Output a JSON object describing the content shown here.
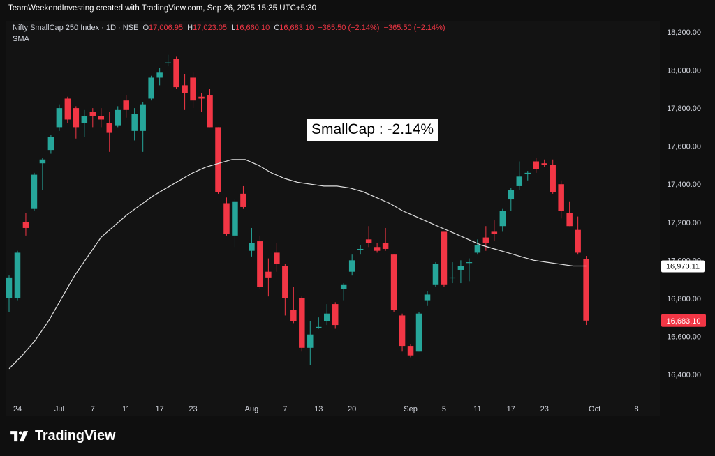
{
  "header": {
    "title": "TeamWeekendInvesting created with TradingView.com, Sep 26, 2025 15:35 UTC+5:30"
  },
  "legend": {
    "symbol": "Nifty SmallCap 250 Index · 1D · NSE",
    "open_label": "O",
    "open": "17,006.95",
    "high_label": "H",
    "high": "17,023.05",
    "low_label": "L",
    "low": "16,660.10",
    "close_label": "C",
    "close": "16,683.10",
    "change": "−365.50 (−2.14%)",
    "change2": "−365.50 (−2.14%)",
    "indicator": "SMA"
  },
  "annotation": {
    "text": "SmallCap : -2.14%"
  },
  "brand": {
    "name": "TradingView",
    "logo_icon": "tradingview-logo-icon"
  },
  "colors": {
    "up": "#26a69a",
    "down": "#f23645",
    "sma": "#e0e0e0",
    "sma_badge_bg": "#ffffff",
    "price_badge_bg": "#f23645"
  },
  "chart_data": {
    "type": "candlestick",
    "title": "Nifty SmallCap 250 Index · 1D · NSE",
    "ylim": [
      16300,
      18270
    ],
    "y_ticks": [
      16400,
      16600,
      16800,
      17000,
      17200,
      17400,
      17600,
      17800,
      18000,
      18200
    ],
    "y_tick_labels": [
      "16,400.00",
      "16,600.00",
      "16,800.00",
      "17,000.00",
      "17,200.00",
      "17,400.00",
      "17,600.00",
      "17,800.00",
      "18,000.00",
      "18,200.00"
    ],
    "x_ticks": [
      {
        "label": "24",
        "date": "2025-06-24"
      },
      {
        "label": "Jul",
        "date": "2025-07-01"
      },
      {
        "label": "7",
        "date": "2025-07-07"
      },
      {
        "label": "11",
        "date": "2025-07-11"
      },
      {
        "label": "17",
        "date": "2025-07-17"
      },
      {
        "label": "23",
        "date": "2025-07-23"
      },
      {
        "label": "Aug",
        "date": "2025-08-01"
      },
      {
        "label": "7",
        "date": "2025-08-07"
      },
      {
        "label": "13",
        "date": "2025-08-13"
      },
      {
        "label": "20",
        "date": "2025-08-20"
      },
      {
        "label": "Sep",
        "date": "2025-09-01"
      },
      {
        "label": "5",
        "date": "2025-09-05"
      },
      {
        "label": "11",
        "date": "2025-09-11"
      },
      {
        "label": "17",
        "date": "2025-09-17"
      },
      {
        "label": "23",
        "date": "2025-09-23"
      },
      {
        "label": "Oct",
        "date": "2025-10-01"
      },
      {
        "label": "8",
        "date": "2025-10-08"
      }
    ],
    "candles": [
      {
        "o": 16800,
        "h": 16920,
        "l": 16730,
        "c": 16910
      },
      {
        "o": 16800,
        "h": 17050,
        "l": 16790,
        "c": 17040
      },
      {
        "o": 17200,
        "h": 17250,
        "l": 17130,
        "c": 17170
      },
      {
        "o": 17270,
        "h": 17460,
        "l": 17260,
        "c": 17450
      },
      {
        "o": 17510,
        "h": 17540,
        "l": 17370,
        "c": 17530
      },
      {
        "o": 17580,
        "h": 17660,
        "l": 17560,
        "c": 17650
      },
      {
        "o": 17700,
        "h": 17820,
        "l": 17680,
        "c": 17800
      },
      {
        "o": 17850,
        "h": 17860,
        "l": 17720,
        "c": 17740
      },
      {
        "o": 17800,
        "h": 17810,
        "l": 17640,
        "c": 17700
      },
      {
        "o": 17720,
        "h": 17790,
        "l": 17650,
        "c": 17760
      },
      {
        "o": 17780,
        "h": 17800,
        "l": 17700,
        "c": 17760
      },
      {
        "o": 17760,
        "h": 17800,
        "l": 17700,
        "c": 17740
      },
      {
        "o": 17720,
        "h": 17780,
        "l": 17570,
        "c": 17670
      },
      {
        "o": 17710,
        "h": 17810,
        "l": 17700,
        "c": 17790
      },
      {
        "o": 17840,
        "h": 17870,
        "l": 17750,
        "c": 17790
      },
      {
        "o": 17680,
        "h": 17800,
        "l": 17630,
        "c": 17770
      },
      {
        "o": 17680,
        "h": 17830,
        "l": 17570,
        "c": 17820
      },
      {
        "o": 17850,
        "h": 17970,
        "l": 17840,
        "c": 17960
      },
      {
        "o": 17960,
        "h": 18010,
        "l": 17920,
        "c": 17990
      },
      {
        "o": 18040,
        "h": 18080,
        "l": 18020,
        "c": 18040
      },
      {
        "o": 18060,
        "h": 18070,
        "l": 17900,
        "c": 17910
      },
      {
        "o": 17920,
        "h": 17980,
        "l": 17790,
        "c": 17880
      },
      {
        "o": 17960,
        "h": 17990,
        "l": 17800,
        "c": 17840
      },
      {
        "o": 17860,
        "h": 17880,
        "l": 17780,
        "c": 17850
      },
      {
        "o": 17870,
        "h": 17900,
        "l": 17700,
        "c": 17700
      },
      {
        "o": 17700,
        "h": 17700,
        "l": 17350,
        "c": 17360
      },
      {
        "o": 17300,
        "h": 17330,
        "l": 17130,
        "c": 17140
      },
      {
        "o": 17130,
        "h": 17320,
        "l": 17070,
        "c": 17310
      },
      {
        "o": 17350,
        "h": 17390,
        "l": 17270,
        "c": 17280
      },
      {
        "o": 17050,
        "h": 17170,
        "l": 17020,
        "c": 17090
      },
      {
        "o": 17100,
        "h": 17130,
        "l": 16850,
        "c": 16860
      },
      {
        "o": 16940,
        "h": 17010,
        "l": 16810,
        "c": 16910
      },
      {
        "o": 17040,
        "h": 17090,
        "l": 16940,
        "c": 16980
      },
      {
        "o": 16970,
        "h": 16980,
        "l": 16710,
        "c": 16800
      },
      {
        "o": 16740,
        "h": 16860,
        "l": 16670,
        "c": 16680
      },
      {
        "o": 16800,
        "h": 16810,
        "l": 16520,
        "c": 16540
      },
      {
        "o": 16540,
        "h": 16680,
        "l": 16450,
        "c": 16610
      },
      {
        "o": 16650,
        "h": 16700,
        "l": 16640,
        "c": 16650
      },
      {
        "o": 16680,
        "h": 16770,
        "l": 16660,
        "c": 16720
      },
      {
        "o": 16770,
        "h": 16780,
        "l": 16640,
        "c": 16660
      },
      {
        "o": 16850,
        "h": 16880,
        "l": 16790,
        "c": 16870
      },
      {
        "o": 16940,
        "h": 17030,
        "l": 16920,
        "c": 17000
      },
      {
        "o": 17060,
        "h": 17080,
        "l": 17030,
        "c": 17060
      },
      {
        "o": 17110,
        "h": 17180,
        "l": 17070,
        "c": 17090
      },
      {
        "o": 17070,
        "h": 17090,
        "l": 17040,
        "c": 17050
      },
      {
        "o": 17090,
        "h": 17170,
        "l": 17050,
        "c": 17060
      },
      {
        "o": 17030,
        "h": 17030,
        "l": 16730,
        "c": 16740
      },
      {
        "o": 16710,
        "h": 16720,
        "l": 16520,
        "c": 16550
      },
      {
        "o": 16550,
        "h": 16560,
        "l": 16490,
        "c": 16500
      },
      {
        "o": 16520,
        "h": 16730,
        "l": 16520,
        "c": 16720
      },
      {
        "o": 16790,
        "h": 16840,
        "l": 16760,
        "c": 16820
      },
      {
        "o": 16870,
        "h": 16990,
        "l": 16860,
        "c": 16980
      },
      {
        "o": 17150,
        "h": 17150,
        "l": 16860,
        "c": 16870
      },
      {
        "o": 16910,
        "h": 16990,
        "l": 16880,
        "c": 16910
      },
      {
        "o": 16950,
        "h": 17000,
        "l": 16880,
        "c": 16970
      },
      {
        "o": 16990,
        "h": 17010,
        "l": 16890,
        "c": 16990
      },
      {
        "o": 17040,
        "h": 17110,
        "l": 17030,
        "c": 17080
      },
      {
        "o": 17120,
        "h": 17180,
        "l": 17050,
        "c": 17090
      },
      {
        "o": 17150,
        "h": 17210,
        "l": 17100,
        "c": 17140
      },
      {
        "o": 17180,
        "h": 17270,
        "l": 17150,
        "c": 17260
      },
      {
        "o": 17320,
        "h": 17380,
        "l": 17260,
        "c": 17370
      },
      {
        "o": 17390,
        "h": 17520,
        "l": 17370,
        "c": 17440
      },
      {
        "o": 17460,
        "h": 17470,
        "l": 17420,
        "c": 17460
      },
      {
        "o": 17520,
        "h": 17540,
        "l": 17460,
        "c": 17480
      },
      {
        "o": 17510,
        "h": 17530,
        "l": 17490,
        "c": 17500
      },
      {
        "o": 17500,
        "h": 17530,
        "l": 17350,
        "c": 17360
      },
      {
        "o": 17400,
        "h": 17420,
        "l": 17220,
        "c": 17260
      },
      {
        "o": 17250,
        "h": 17310,
        "l": 17180,
        "c": 17180
      },
      {
        "o": 17160,
        "h": 17230,
        "l": 17030,
        "c": 17040
      },
      {
        "o": 17006.95,
        "h": 17023.05,
        "l": 16660.1,
        "c": 16683.1
      }
    ],
    "sma": [
      16430,
      16500,
      16580,
      16680,
      16800,
      16920,
      17020,
      17120,
      17180,
      17240,
      17290,
      17340,
      17380,
      17420,
      17460,
      17490,
      17510,
      17530,
      17530,
      17500,
      17460,
      17430,
      17410,
      17400,
      17390,
      17390,
      17380,
      17360,
      17330,
      17300,
      17260,
      17230,
      17200,
      17170,
      17140,
      17110,
      17080,
      17060,
      17040,
      17020,
      17000,
      16990,
      16980,
      16970,
      16970
    ],
    "last_price_label": "16,683.10",
    "sma_value_label": "16,970.11"
  }
}
